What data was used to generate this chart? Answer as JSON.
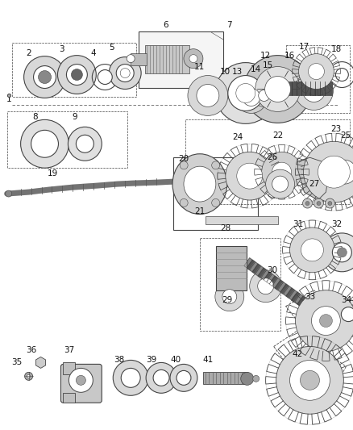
{
  "bg_color": "#ffffff",
  "line_color": "#444444",
  "label_color": "#111111",
  "fig_width": 4.39,
  "fig_height": 5.33,
  "dpi": 100
}
